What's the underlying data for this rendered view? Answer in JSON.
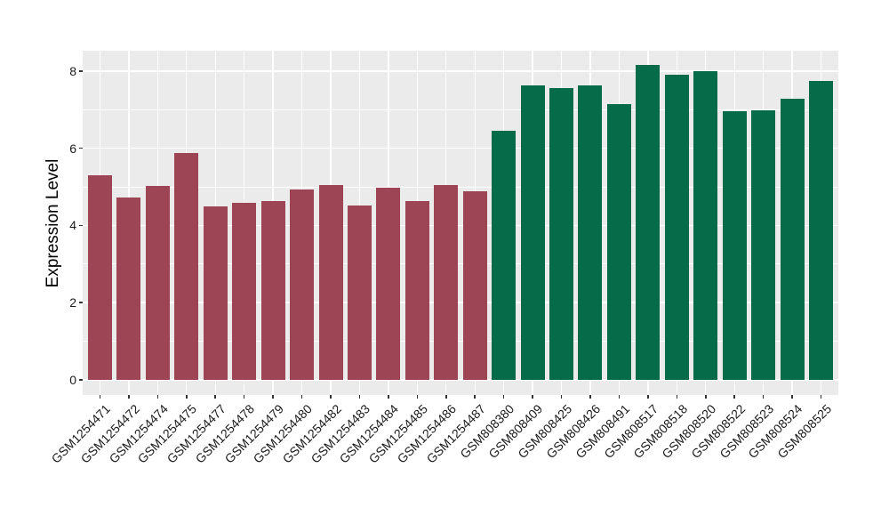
{
  "figure": {
    "background": "#FFFFFF"
  },
  "chart_data": {
    "type": "bar",
    "title": "",
    "xlabel": "",
    "ylabel": "Expression Level",
    "ylim": [
      0,
      8.6
    ],
    "yticks": [
      0,
      2,
      4,
      6,
      8
    ],
    "minor_gridlines": [
      1,
      3,
      5,
      7
    ],
    "grid": "on",
    "legend_position": "none",
    "panel_background": "#EBEBEB",
    "gridline_color": "#FFFFFF",
    "tick_mark_color": "#333333",
    "tick_label_color": "#1A1A1A",
    "axis_title_color": "#000000",
    "categories": [
      "GSM1254471",
      "GSM1254472",
      "GSM1254474",
      "GSM1254475",
      "GSM1254477",
      "GSM1254478",
      "GSM1254479",
      "GSM1254480",
      "GSM1254482",
      "GSM1254483",
      "GSM1254484",
      "GSM1254485",
      "GSM1254486",
      "GSM1254487",
      "GSM808380",
      "GSM808409",
      "GSM808425",
      "GSM808426",
      "GSM808491",
      "GSM808517",
      "GSM808518",
      "GSM808520",
      "GSM808522",
      "GSM808523",
      "GSM808524",
      "GSM808525"
    ],
    "values": [
      5.31,
      4.73,
      5.02,
      5.87,
      4.5,
      4.59,
      4.62,
      4.92,
      5.04,
      4.52,
      4.98,
      4.62,
      5.04,
      4.88,
      6.44,
      7.63,
      7.55,
      7.63,
      7.15,
      8.15,
      7.9,
      8.0,
      6.96,
      6.99,
      7.29,
      7.75
    ],
    "groups": [
      "group1",
      "group1",
      "group1",
      "group1",
      "group1",
      "group1",
      "group1",
      "group1",
      "group1",
      "group1",
      "group1",
      "group1",
      "group1",
      "group1",
      "group2",
      "group2",
      "group2",
      "group2",
      "group2",
      "group2",
      "group2",
      "group2",
      "group2",
      "group2",
      "group2",
      "group2"
    ],
    "group_colors": {
      "group1": "#9D4455",
      "group2": "#056B48"
    }
  }
}
